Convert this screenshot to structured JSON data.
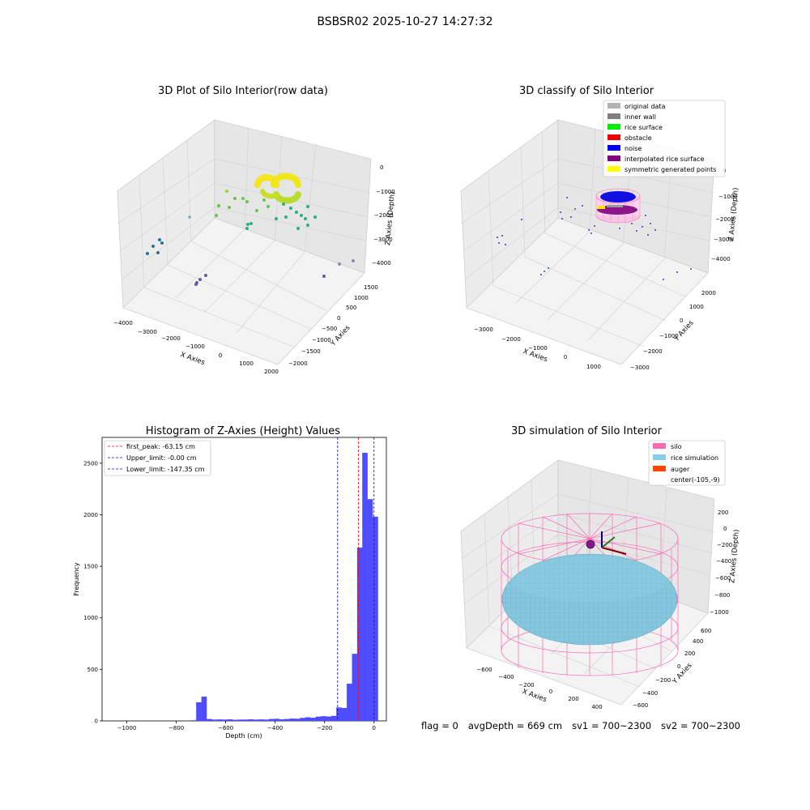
{
  "figure": {
    "title": "BSBSR02 2025-10-27 14:27:32"
  },
  "footer": {
    "flag": "flag = 0",
    "avg_depth": "avgDepth = 669 cm",
    "sv1": "sv1 = 700~2300",
    "sv2": "sv2 = 700~2300"
  },
  "panel1": {
    "title": "3D Plot of Silo Interior(row data)",
    "xlabel": "X Axies",
    "ylabel": "Y Axies",
    "zlabel": "Z Axies (Depth)",
    "xticks": [
      "−4000",
      "−3000",
      "−2000",
      "−1000",
      "0",
      "1000",
      "2000"
    ],
    "yticks": [
      "−2000",
      "−1500",
      "−1000",
      "−500",
      "0",
      "500",
      "1000",
      "1500"
    ],
    "zticks": [
      "0",
      "−1000",
      "−2000",
      "−3000",
      "−4000"
    ]
  },
  "panel2": {
    "title": "3D classify of Silo Interior",
    "xlabel": "X Axies",
    "ylabel": "Y Axies",
    "zlabel": "Z Axies (Depth)",
    "xticks": [
      "−3000",
      "−2000",
      "−1000",
      "0",
      "1000"
    ],
    "yticks": [
      "−3000",
      "−2000",
      "−1000",
      "0",
      "1000",
      "2000"
    ],
    "zticks": [
      "0",
      "−1000",
      "−2000",
      "−3000",
      "−4000"
    ],
    "legend": [
      {
        "label": "original data",
        "color": "#b4b4b4"
      },
      {
        "label": "inner wall",
        "color": "#808080"
      },
      {
        "label": "rice surface",
        "color": "#00ee00"
      },
      {
        "label": "obstacle",
        "color": "#ee0000"
      },
      {
        "label": "noise",
        "color": "#0000ee"
      },
      {
        "label": "interpolated rice surface",
        "color": "#800080"
      },
      {
        "label": "symmetric generated points",
        "color": "#ffff00"
      }
    ]
  },
  "panel4": {
    "title": "3D simulation of Silo Interior",
    "xlabel": "X Axies",
    "ylabel": "Y Axies",
    "zlabel": "Z Axies (Depth)",
    "xticks": [
      "−600",
      "−400",
      "−200",
      "0",
      "200",
      "400"
    ],
    "yticks": [
      "−600",
      "−400",
      "−200",
      "0",
      "200",
      "400",
      "600"
    ],
    "zticks": [
      "200",
      "0",
      "−200",
      "−400",
      "−600",
      "−800",
      "−1000"
    ],
    "legend": [
      {
        "label": "silo",
        "color": "#ff69b4"
      },
      {
        "label": "rice simulation",
        "color": "#87ceeb"
      },
      {
        "label": "auger",
        "color": "#ff4500"
      },
      {
        "label": "center(-105,-9)",
        "color": ""
      }
    ]
  },
  "chart_data": [
    {
      "type": "scatter",
      "title": "3D Plot of Silo Interior(row data)",
      "xlabel": "X Axies",
      "ylabel": "Y Axies",
      "zlabel": "Z Axies (Depth)",
      "xlim": [
        -4000,
        2000
      ],
      "ylim": [
        -2000,
        1500
      ],
      "zlim": [
        -4000,
        0
      ]
    },
    {
      "type": "scatter",
      "title": "3D classify of Silo Interior",
      "xlabel": "X Axies",
      "ylabel": "Y Axies",
      "zlabel": "Z Axies (Depth)",
      "xlim": [
        -3000,
        1000
      ],
      "ylim": [
        -3000,
        2000
      ],
      "zlim": [
        -4000,
        0
      ],
      "series": [
        {
          "name": "original data"
        },
        {
          "name": "inner wall"
        },
        {
          "name": "rice surface"
        },
        {
          "name": "obstacle"
        },
        {
          "name": "noise"
        },
        {
          "name": "interpolated rice surface"
        },
        {
          "name": "symmetric generated points"
        }
      ]
    },
    {
      "type": "bar",
      "title": "Histogram of Z-Axies (Height) Values",
      "xlabel": "Depth (cm)",
      "ylabel": "Frequency",
      "xlim": [
        -1100,
        50
      ],
      "ylim": [
        0,
        2750
      ],
      "xticks": [
        -1000,
        -800,
        -600,
        -400,
        -200,
        0
      ],
      "yticks": [
        0,
        500,
        1000,
        1500,
        2000,
        2500
      ],
      "bin_width": 21,
      "bins": [
        {
          "x": -740,
          "y": 5
        },
        {
          "x": -719,
          "y": 180
        },
        {
          "x": -698,
          "y": 235
        },
        {
          "x": -677,
          "y": 18
        },
        {
          "x": -656,
          "y": 12
        },
        {
          "x": -635,
          "y": 14
        },
        {
          "x": -614,
          "y": 12
        },
        {
          "x": -593,
          "y": 15
        },
        {
          "x": -572,
          "y": 10
        },
        {
          "x": -551,
          "y": 12
        },
        {
          "x": -530,
          "y": 12
        },
        {
          "x": -509,
          "y": 15
        },
        {
          "x": -488,
          "y": 12
        },
        {
          "x": -467,
          "y": 14
        },
        {
          "x": -446,
          "y": 12
        },
        {
          "x": -425,
          "y": 18
        },
        {
          "x": -404,
          "y": 20
        },
        {
          "x": -383,
          "y": 15
        },
        {
          "x": -362,
          "y": 18
        },
        {
          "x": -341,
          "y": 22
        },
        {
          "x": -320,
          "y": 20
        },
        {
          "x": -299,
          "y": 28
        },
        {
          "x": -278,
          "y": 35
        },
        {
          "x": -257,
          "y": 30
        },
        {
          "x": -236,
          "y": 40
        },
        {
          "x": -215,
          "y": 45
        },
        {
          "x": -194,
          "y": 42
        },
        {
          "x": -173,
          "y": 48
        },
        {
          "x": -152,
          "y": 130
        },
        {
          "x": -131,
          "y": 125
        },
        {
          "x": -110,
          "y": 360
        },
        {
          "x": -89,
          "y": 650
        },
        {
          "x": -68,
          "y": 1680
        },
        {
          "x": -47,
          "y": 2600
        },
        {
          "x": -26,
          "y": 2150
        },
        {
          "x": -5,
          "y": 1980
        }
      ],
      "vlines": [
        {
          "name": "first_peak: -63.15 cm",
          "x": -63.15,
          "color": "#ff0000"
        },
        {
          "name": "Upper_limit: -0.00 cm",
          "x": 0,
          "color": "#0000ff"
        },
        {
          "name": "Lower_limit: -147.35 cm",
          "x": -147.35,
          "color": "#0000ff"
        }
      ],
      "bar_color": "#4d4dff"
    },
    {
      "type": "scatter",
      "title": "3D simulation of Silo Interior",
      "xlabel": "X Axies",
      "ylabel": "Y Axies",
      "zlabel": "Z Axies (Depth)",
      "xlim": [
        -700,
        500
      ],
      "ylim": [
        -700,
        700
      ],
      "zlim": [
        -1100,
        300
      ],
      "series": [
        {
          "name": "silo"
        },
        {
          "name": "rice simulation"
        },
        {
          "name": "auger"
        }
      ]
    }
  ]
}
